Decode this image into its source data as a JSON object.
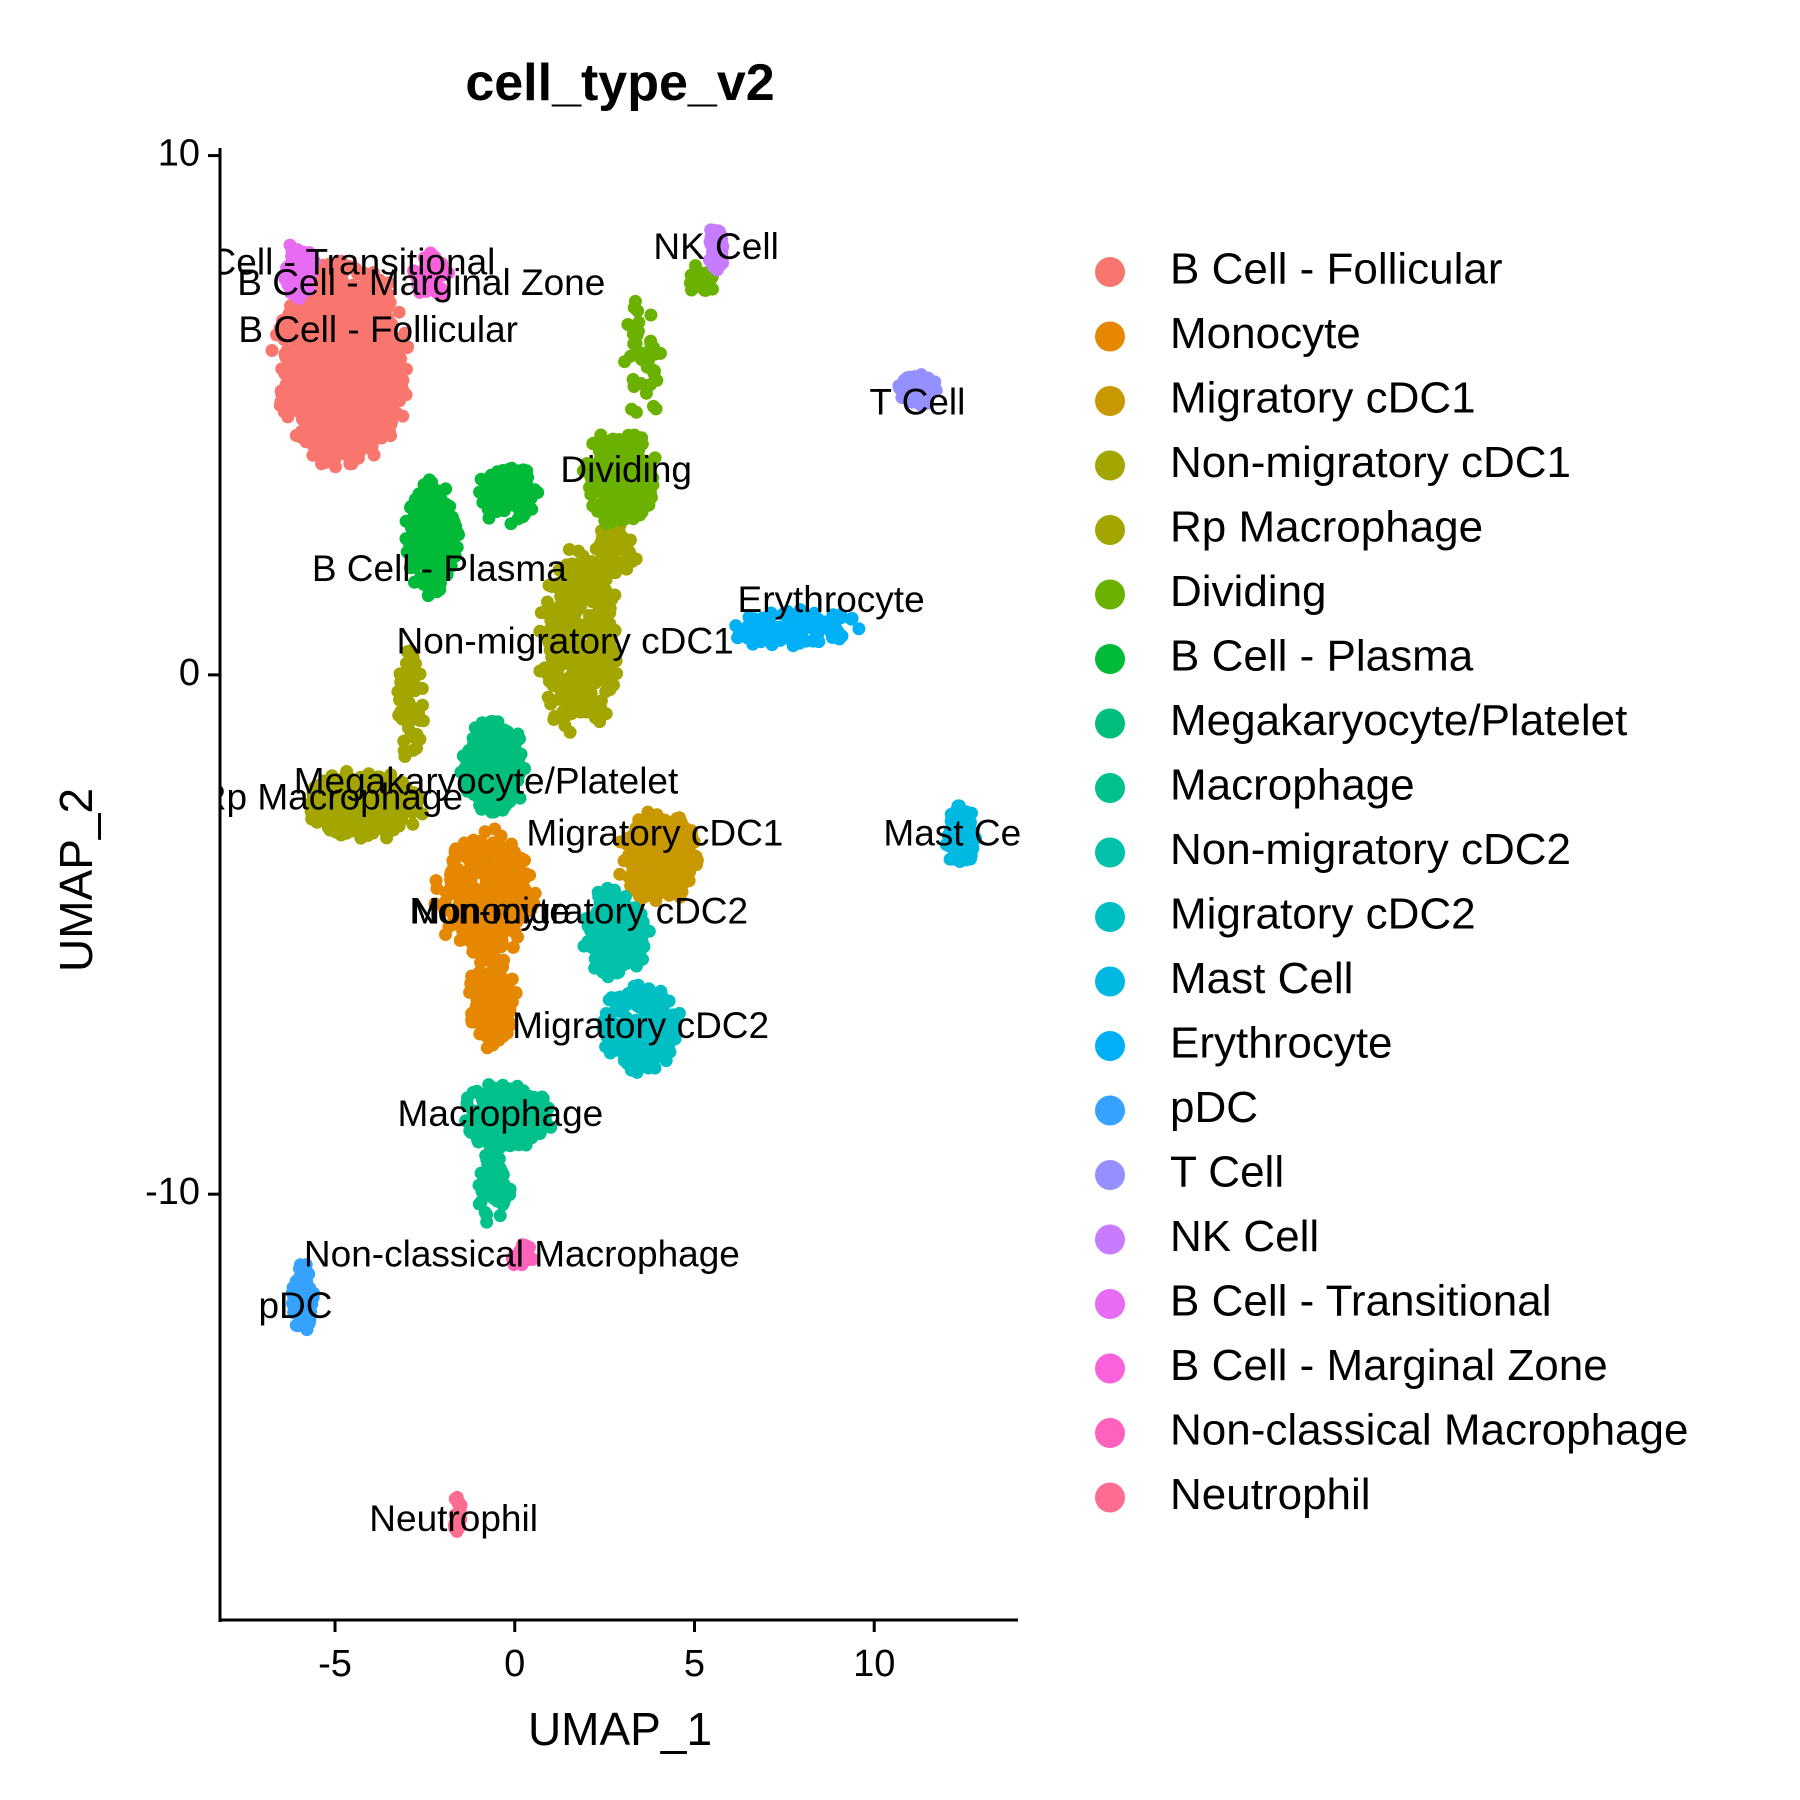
{
  "chart_data": {
    "type": "scatter",
    "title": "cell_type_v2",
    "xlabel": "UMAP_1",
    "ylabel": "UMAP_2",
    "xlim": [
      -8.2,
      14
    ],
    "ylim": [
      -18.2,
      10.3
    ],
    "xticks": [
      -5,
      0,
      5,
      10
    ],
    "yticks": [
      -10,
      0,
      10
    ],
    "grid": false,
    "legend_position": "right",
    "series": [
      {
        "name": "B Cell - Follicular",
        "color": "#F8766D",
        "label_x": -3.8,
        "label_y": 6.6,
        "clusters": [
          {
            "x": -4.8,
            "y": 6.0,
            "rx": 2.0,
            "ry": 2.1,
            "n": 1100
          }
        ]
      },
      {
        "name": "Monocyte",
        "color": "#E58700",
        "label_x": -0.7,
        "label_y": -4.6,
        "clusters": [
          {
            "x": -0.8,
            "y": -4.2,
            "rx": 1.5,
            "ry": 1.3,
            "n": 320
          },
          {
            "x": -0.6,
            "y": -6.3,
            "rx": 0.8,
            "ry": 1.0,
            "n": 120
          }
        ]
      },
      {
        "name": "Migratory cDC1",
        "color": "#C99800",
        "label_x": 3.9,
        "label_y": -3.1,
        "clusters": [
          {
            "x": 4.0,
            "y": -3.5,
            "rx": 1.2,
            "ry": 1.0,
            "n": 260
          }
        ]
      },
      {
        "name": "Non-migratory cDC1",
        "color": "#A3A500",
        "label_x": 1.4,
        "label_y": 0.6,
        "clusters": [
          {
            "x": 1.8,
            "y": 0.6,
            "rx": 1.2,
            "ry": 1.9,
            "n": 360
          },
          {
            "x": 2.8,
            "y": 2.4,
            "rx": 0.7,
            "ry": 0.6,
            "n": 60
          }
        ]
      },
      {
        "name": "Rp Macrophage",
        "color": "#A3A500",
        "label_x": -5.1,
        "label_y": -2.4,
        "clusters": [
          {
            "x": -4.2,
            "y": -2.5,
            "rx": 1.8,
            "ry": 0.7,
            "n": 280
          },
          {
            "x": -2.9,
            "y": -0.6,
            "rx": 0.4,
            "ry": 1.2,
            "n": 60
          }
        ]
      },
      {
        "name": "Dividing",
        "color": "#6BB100",
        "label_x": 3.1,
        "label_y": 3.9,
        "clusters": [
          {
            "x": 2.9,
            "y": 3.8,
            "rx": 1.1,
            "ry": 1.0,
            "n": 220
          },
          {
            "x": 3.6,
            "y": 6.1,
            "rx": 0.6,
            "ry": 1.4,
            "n": 40
          },
          {
            "x": 5.2,
            "y": 7.6,
            "rx": 0.5,
            "ry": 0.4,
            "n": 20
          }
        ]
      },
      {
        "name": "B Cell - Plasma",
        "color": "#00BA38",
        "label_x": -2.1,
        "label_y": 2.0,
        "clusters": [
          {
            "x": -2.3,
            "y": 2.6,
            "rx": 0.8,
            "ry": 1.2,
            "n": 250
          },
          {
            "x": -0.2,
            "y": 3.5,
            "rx": 0.9,
            "ry": 0.7,
            "n": 80
          }
        ]
      },
      {
        "name": "Megakaryocyte/Platelet",
        "color": "#00BF7D",
        "label_x": -0.8,
        "label_y": -2.1,
        "clusters": [
          {
            "x": -0.6,
            "y": -1.8,
            "rx": 1.0,
            "ry": 1.0,
            "n": 220
          }
        ]
      },
      {
        "name": "Macrophage",
        "color": "#00C08B",
        "label_x": -0.4,
        "label_y": -8.5,
        "clusters": [
          {
            "x": -0.2,
            "y": -8.5,
            "rx": 1.4,
            "ry": 0.7,
            "n": 160
          },
          {
            "x": -0.6,
            "y": -9.9,
            "rx": 0.5,
            "ry": 0.8,
            "n": 60
          }
        ]
      },
      {
        "name": "Non-migratory cDC2",
        "color": "#00C1AA",
        "label_x": 1.8,
        "label_y": -4.6,
        "clusters": [
          {
            "x": 2.8,
            "y": -5.0,
            "rx": 1.0,
            "ry": 1.0,
            "n": 180
          }
        ]
      },
      {
        "name": "Migratory cDC2",
        "color": "#00BFC4",
        "label_x": 3.5,
        "label_y": -6.8,
        "clusters": [
          {
            "x": 3.5,
            "y": -6.8,
            "rx": 1.2,
            "ry": 1.0,
            "n": 200
          }
        ]
      },
      {
        "name": "Mast Cell",
        "color": "#00B9E3",
        "label_x": 12.4,
        "label_y": -3.1,
        "clusters": [
          {
            "x": 12.4,
            "y": -3.1,
            "rx": 0.45,
            "ry": 0.7,
            "n": 90
          }
        ]
      },
      {
        "name": "Erythrocyte",
        "color": "#00B0F6",
        "label_x": 8.8,
        "label_y": 1.4,
        "clusters": [
          {
            "x": 7.8,
            "y": 0.9,
            "rx": 1.9,
            "ry": 0.4,
            "n": 110
          }
        ]
      },
      {
        "name": "pDC",
        "color": "#35A2FF",
        "label_x": -6.1,
        "label_y": -12.2,
        "clusters": [
          {
            "x": -5.9,
            "y": -12.0,
            "rx": 0.35,
            "ry": 0.7,
            "n": 90
          }
        ]
      },
      {
        "name": "T Cell",
        "color": "#9590FF",
        "label_x": 11.2,
        "label_y": 5.2,
        "clusters": [
          {
            "x": 11.2,
            "y": 5.5,
            "rx": 0.6,
            "ry": 0.35,
            "n": 70
          }
        ]
      },
      {
        "name": "NK Cell",
        "color": "#C77CFF",
        "label_x": 5.6,
        "label_y": 8.2,
        "clusters": [
          {
            "x": 5.6,
            "y": 8.2,
            "rx": 0.25,
            "ry": 0.5,
            "n": 50
          }
        ]
      },
      {
        "name": "B Cell - Transitional",
        "color": "#E76BF3",
        "label_x": -5.0,
        "label_y": 7.9,
        "clusters": [
          {
            "x": -6.0,
            "y": 7.8,
            "rx": 0.5,
            "ry": 0.6,
            "n": 70
          }
        ]
      },
      {
        "name": "B Cell - Marginal Zone",
        "color": "#FA62DB",
        "label_x": -2.6,
        "label_y": 7.5,
        "clusters": [
          {
            "x": -2.3,
            "y": 7.7,
            "rx": 0.6,
            "ry": 0.5,
            "n": 40
          }
        ]
      },
      {
        "name": "Non-classical Macrophage",
        "color": "#FF62BC",
        "label_x": 0.2,
        "label_y": -11.2,
        "clusters": [
          {
            "x": 0.2,
            "y": -11.2,
            "rx": 0.4,
            "ry": 0.25,
            "n": 30
          }
        ]
      },
      {
        "name": "Neutrophil",
        "color": "#FF6C91",
        "label_x": -1.7,
        "label_y": -16.3,
        "clusters": [
          {
            "x": -1.6,
            "y": -16.2,
            "rx": 0.15,
            "ry": 0.5,
            "n": 25
          }
        ]
      }
    ]
  }
}
